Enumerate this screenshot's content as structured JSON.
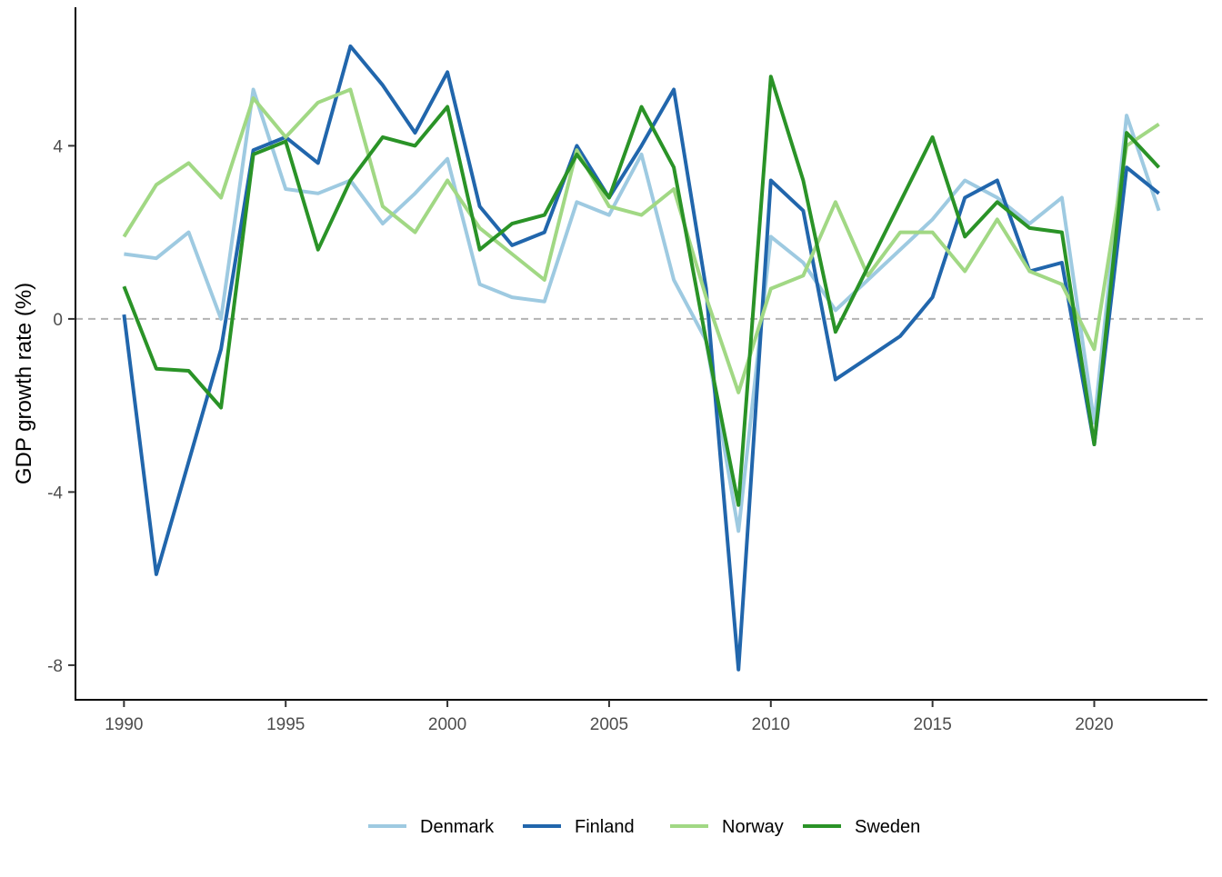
{
  "chart_data": {
    "type": "line",
    "title": "",
    "xlabel": "",
    "ylabel": "GDP growth rate (%)",
    "xlim": [
      1988.5,
      2023.5
    ],
    "ylim": [
      -8.8,
      7.2
    ],
    "x_ticks": [
      1990,
      1995,
      2000,
      2005,
      2010,
      2015,
      2020
    ],
    "y_ticks": [
      -8,
      -4,
      0,
      4
    ],
    "y_tick_labels": [
      "-8",
      "-4",
      "0",
      "4"
    ],
    "reference_line": {
      "y": 0,
      "style": "dashed",
      "color": "#b3b3b3"
    },
    "grid": false,
    "legend_position": "bottom",
    "x": [
      1990,
      1991,
      1992,
      1993,
      1994,
      1995,
      1996,
      1997,
      1998,
      1999,
      2000,
      2001,
      2002,
      2003,
      2004,
      2005,
      2006,
      2007,
      2008,
      2009,
      2010,
      2011,
      2012,
      2013,
      2014,
      2015,
      2016,
      2017,
      2018,
      2019,
      2020,
      2021,
      2022
    ],
    "series": [
      {
        "name": "Denmark",
        "color": "#9ecae1",
        "values": [
          1.5,
          1.4,
          2.0,
          0.0,
          5.3,
          3.0,
          2.9,
          3.2,
          2.2,
          2.9,
          3.7,
          0.8,
          0.5,
          0.4,
          2.7,
          2.4,
          3.8,
          0.9,
          -0.5,
          -4.9,
          1.9,
          1.3,
          0.2,
          0.9,
          1.6,
          2.3,
          3.2,
          2.8,
          2.2,
          2.8,
          -2.4,
          4.7,
          2.5
        ]
      },
      {
        "name": "Finland",
        "color": "#2166ac",
        "values": [
          0.1,
          -5.9,
          -3.3,
          -0.7,
          3.9,
          4.2,
          3.6,
          6.3,
          5.4,
          4.3,
          5.7,
          2.6,
          1.7,
          2.0,
          4.0,
          2.8,
          4.0,
          5.3,
          0.7,
          -8.1,
          3.2,
          2.5,
          -1.4,
          -0.9,
          -0.4,
          0.5,
          2.8,
          3.2,
          1.1,
          1.3,
          -2.9,
          3.5,
          2.9
        ]
      },
      {
        "name": "Norway",
        "color": "#a1d884",
        "values": [
          1.9,
          3.1,
          3.6,
          2.8,
          5.1,
          4.2,
          5.0,
          5.3,
          2.6,
          2.0,
          3.2,
          2.1,
          1.5,
          0.9,
          3.9,
          2.6,
          2.4,
          3.0,
          0.5,
          -1.7,
          0.7,
          1.0,
          2.7,
          1.0,
          2.0,
          2.0,
          1.1,
          2.3,
          1.1,
          0.8,
          -0.7,
          4.0,
          4.5
        ]
      },
      {
        "name": "Sweden",
        "color": "#2a9327",
        "values": [
          0.75,
          -1.15,
          -1.2,
          -2.05,
          3.8,
          4.1,
          1.6,
          3.2,
          4.2,
          4.0,
          4.9,
          1.6,
          2.2,
          2.4,
          3.8,
          2.8,
          4.9,
          3.5,
          -0.5,
          -4.3,
          5.6,
          3.2,
          -0.3,
          1.2,
          2.7,
          4.2,
          1.9,
          2.7,
          2.1,
          2.0,
          -2.9,
          4.3,
          3.5
        ]
      }
    ]
  }
}
